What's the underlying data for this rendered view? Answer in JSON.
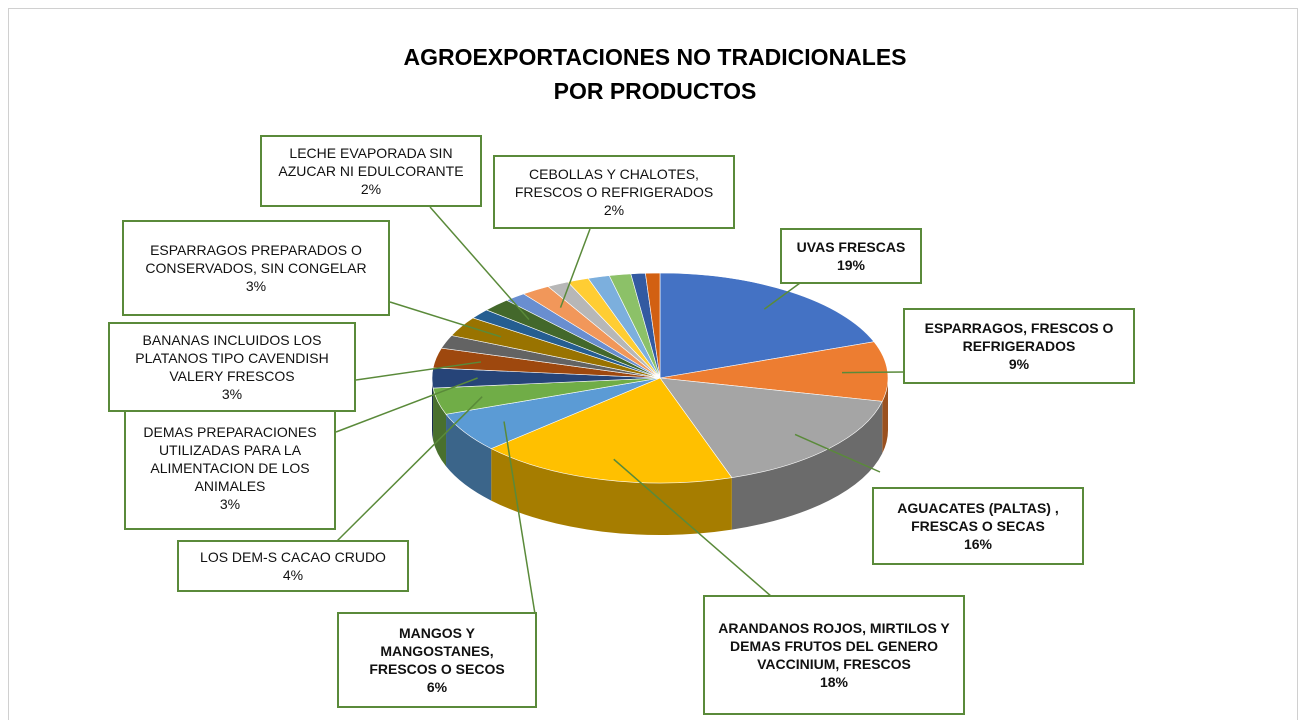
{
  "chart_data": {
    "type": "pie3d",
    "title": "AGROEXPORTACIONES NO TRADICIONALES\nPOR PRODUCTOS",
    "categories": [
      "UVAS FRESCAS",
      "ESPARRAGOS, FRESCOS O REFRIGERADOS",
      "AGUACATES (PALTAS) , FRESCAS O SECAS",
      "ARANDANOS ROJOS, MIRTILOS Y DEMAS FRUTOS DEL GENERO VACCINIUM, FRESCOS",
      "MANGOS Y MANGOSTANES, FRESCOS O SECOS",
      "LOS DEM-S CACAO CRUDO",
      "DEMAS PREPARACIONES UTILIZADAS PARA LA ALIMENTACION DE LOS ANIMALES",
      "BANANAS INCLUIDOS LOS PLATANOS TIPO CAVENDISH VALERY FRESCOS",
      null,
      "ESPARRAGOS PREPARADOS O CONSERVADOS, SIN CONGELAR",
      null,
      "LECHE EVAPORADA SIN AZUCAR NI EDULCORANTE",
      null,
      "CEBOLLAS Y CHALOTES, FRESCOS O REFRIGERADOS",
      null,
      null,
      null,
      null,
      null,
      null
    ],
    "values": [
      19,
      9,
      16,
      18,
      6,
      4,
      3,
      3,
      2,
      3,
      1.5,
      2,
      1.5,
      2,
      1.5,
      1.5,
      1.5,
      1.5,
      1,
      1
    ],
    "value_labels": [
      "19%",
      "9%",
      "16%",
      "18%",
      "6%",
      "4%",
      "3%",
      "3%",
      null,
      "3%",
      null,
      "2%",
      null,
      "2%",
      null,
      null,
      null,
      null,
      null,
      null
    ],
    "colors": [
      "#4472c4",
      "#ed7d31",
      "#a5a5a5",
      "#ffc000",
      "#5b9bd5",
      "#70ad47",
      "#264478",
      "#9e480e",
      "#636363",
      "#997300",
      "#255e91",
      "#43682b",
      "#698ed0",
      "#f1975a",
      "#b7b7b7",
      "#ffcd33",
      "#7cafdd",
      "#8cc168",
      "#335aa1",
      "#d26012"
    ]
  }
}
